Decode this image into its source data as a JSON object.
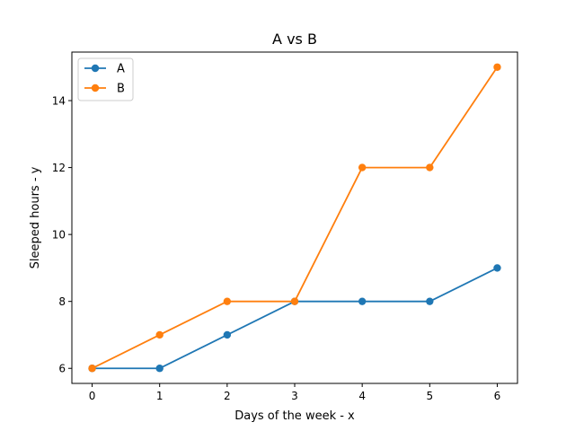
{
  "chart_data": {
    "type": "line",
    "title": "A vs B",
    "xlabel": "Days of the week - x",
    "ylabel": "Sleeped hours - y",
    "x": [
      0,
      1,
      2,
      3,
      4,
      5,
      6
    ],
    "xlim": [
      -0.3,
      6.3
    ],
    "ylim": [
      5.55,
      15.45
    ],
    "xticks": [
      0,
      1,
      2,
      3,
      4,
      5,
      6
    ],
    "yticks": [
      6,
      8,
      10,
      12,
      14
    ],
    "grid": false,
    "legend_position": "top-left",
    "series": [
      {
        "name": "A",
        "color": "#1f77b4",
        "marker": "circle",
        "values": [
          6,
          6,
          7,
          8,
          8,
          8,
          9
        ]
      },
      {
        "name": "B",
        "color": "#ff7f0e",
        "marker": "circle",
        "values": [
          6,
          7,
          8,
          8,
          12,
          12,
          15
        ]
      }
    ]
  }
}
